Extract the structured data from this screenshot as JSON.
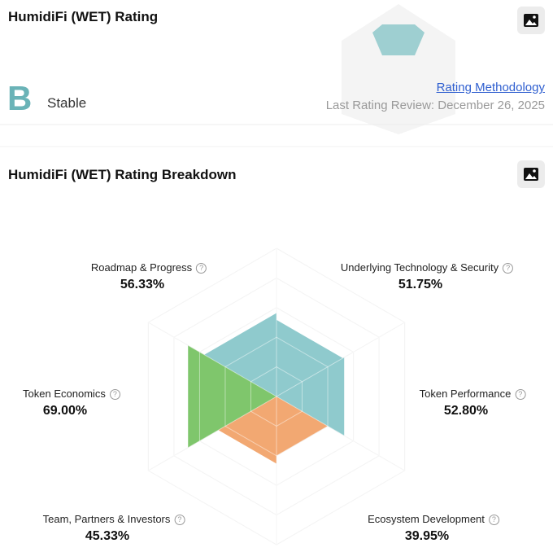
{
  "header": {
    "title": "HumidiFi (WET) Rating",
    "grade": "B",
    "status": "Stable",
    "methodology_link": "Rating Methodology",
    "last_review": "Last Rating Review: December 26, 2025"
  },
  "chart_data": {
    "type": "radar",
    "title": "HumidiFi (WET) Rating Breakdown",
    "categories": [
      "Roadmap & Progress",
      "Underlying Technology & Security",
      "Token Economics",
      "Token Performance",
      "Team, Partners & Investors",
      "Ecosystem Development"
    ],
    "values": [
      56.33,
      51.75,
      69.0,
      52.8,
      45.33,
      39.95
    ],
    "value_labels": [
      "56.33%",
      "51.75%",
      "69.00%",
      "52.80%",
      "45.33%",
      "39.95%"
    ],
    "colors": [
      "#8fcacd",
      "#8fcacd",
      "#7fc66c",
      "#8fcacd",
      "#f2a872",
      "#f2a872"
    ],
    "ylim": [
      0,
      100
    ]
  }
}
